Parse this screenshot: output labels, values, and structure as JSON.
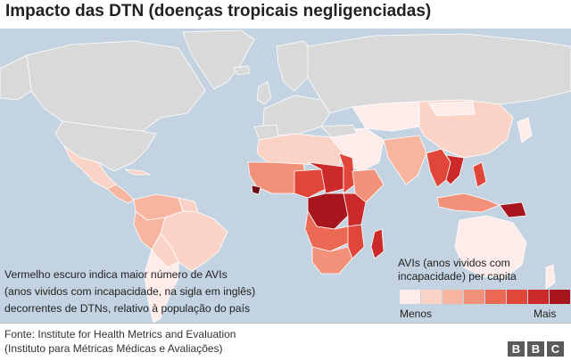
{
  "title": "Impacto das DTN (doenças tropicais negligenciadas)",
  "description": [
    "Vermelho escuro indica maior número de AVIs",
    "(anos vividos com incapacidade, na sigla em inglês)",
    "decorrentes de DTNs, relativo à população do país"
  ],
  "legend": {
    "title": "AVIs (anos vividos com incapacidade) per capita",
    "min_label": "Menos",
    "max_label": "Mais",
    "colors": [
      "#fdecea",
      "#fbd3c6",
      "#f7b5a0",
      "#f2917a",
      "#ec6a55",
      "#e0463a",
      "#cc2a2a",
      "#a8161d",
      "#6e0a10"
    ]
  },
  "source": {
    "line1": "Fonte: Institute for Health Metrics and Evaluation",
    "line2": "(Instituto para Métricas Médicas e Avaliações)"
  },
  "brand": {
    "letters": [
      "B",
      "B",
      "C"
    ]
  },
  "map": {
    "ocean_color": "#c3d3e1",
    "no_data_color": "#d9d9d9",
    "border_color": "#ffffff"
  }
}
